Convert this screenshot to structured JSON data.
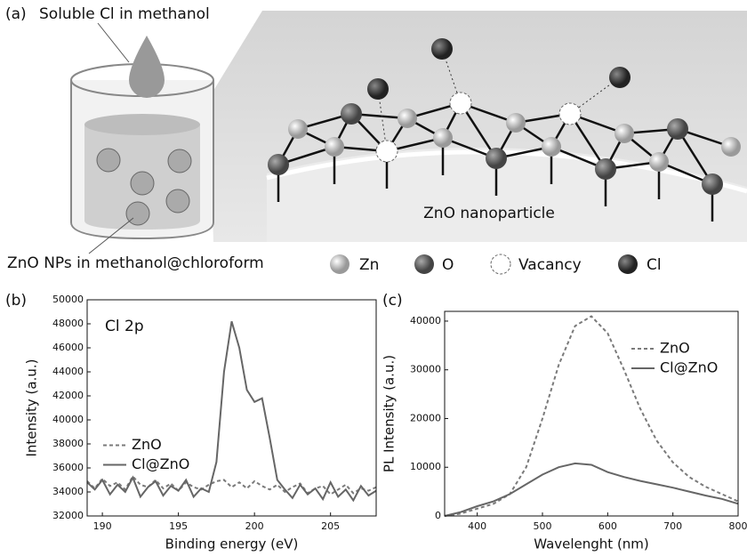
{
  "diagram": {
    "panel": "(a)",
    "source_label": "Soluble Cl in methanol",
    "beaker_label": "ZnO NPs in methanol@chloroform",
    "particle_label": "ZnO nanoparticle",
    "legend": [
      "Zn",
      "O",
      "Vacancy",
      "Cl"
    ]
  },
  "chart_data": [
    {
      "type": "line",
      "panel": "(b)",
      "annotation": "Cl 2p",
      "xlabel": "Binding energy (eV)",
      "ylabel": "Intensity (a.u.)",
      "xlim": [
        189,
        208
      ],
      "ylim": [
        32000,
        50000
      ],
      "xticks": [
        190,
        195,
        200,
        205
      ],
      "yticks": [
        32000,
        34000,
        36000,
        38000,
        40000,
        42000,
        44000,
        46000,
        48000,
        50000
      ],
      "legend": "center left",
      "x": [
        189,
        189.5,
        190,
        190.5,
        191,
        191.5,
        192,
        192.5,
        193,
        193.5,
        194,
        194.5,
        195,
        195.5,
        196,
        196.5,
        197,
        197.5,
        198,
        198.5,
        199,
        199.5,
        200,
        200.5,
        201,
        201.5,
        202,
        202.5,
        203,
        203.5,
        204,
        204.5,
        205,
        205.5,
        206,
        206.5,
        207,
        207.5,
        208
      ],
      "series": [
        {
          "name": "ZnO",
          "color": "#7a7a7a",
          "line_style": "dashed",
          "values": [
            34900,
            34300,
            35100,
            34500,
            34800,
            34200,
            35300,
            34600,
            34400,
            35000,
            34300,
            34700,
            34100,
            34800,
            34400,
            34200,
            34600,
            34900,
            35000,
            34400,
            34800,
            34300,
            34900,
            34500,
            34200,
            34600,
            34000,
            34400,
            34700,
            33900,
            34300,
            34500,
            33800,
            34200,
            34600,
            33900,
            34300,
            34100,
            34400
          ]
        },
        {
          "name": "Cl@ZnO",
          "color": "#666666",
          "line_style": "solid",
          "values": [
            34800,
            34200,
            35000,
            33800,
            34600,
            34000,
            35200,
            33600,
            34400,
            34900,
            33700,
            34500,
            34100,
            35000,
            33600,
            34300,
            34000,
            36500,
            44000,
            48200,
            46000,
            42500,
            41500,
            41800,
            38500,
            35000,
            34200,
            33500,
            34600,
            33800,
            34300,
            33400,
            34800,
            33600,
            34200,
            33300,
            34500,
            33700,
            34100
          ]
        }
      ]
    },
    {
      "type": "line",
      "panel": "(c)",
      "xlabel": "Wavelenght (nm)",
      "ylabel": "PL Intensity (a.u.)",
      "xlim": [
        350,
        800
      ],
      "ylim": [
        0,
        42000
      ],
      "xticks": [
        400,
        500,
        600,
        700,
        800
      ],
      "yticks": [
        0,
        10000,
        20000,
        30000,
        40000
      ],
      "legend": "upper right",
      "x": [
        350,
        375,
        400,
        425,
        450,
        475,
        500,
        525,
        550,
        575,
        600,
        625,
        650,
        675,
        700,
        725,
        750,
        775,
        800
      ],
      "series": [
        {
          "name": "ZnO",
          "color": "#7a7a7a",
          "line_style": "dashed",
          "values": [
            0,
            500,
            1500,
            2500,
            4500,
            10000,
            20000,
            31000,
            39000,
            41000,
            37500,
            30000,
            22000,
            15500,
            11000,
            8000,
            6000,
            4500,
            3000
          ]
        },
        {
          "name": "Cl@ZnO",
          "color": "#666666",
          "line_style": "solid",
          "values": [
            0,
            800,
            2000,
            3000,
            4500,
            6500,
            8500,
            10000,
            10800,
            10500,
            9000,
            8000,
            7200,
            6500,
            5800,
            5000,
            4200,
            3500,
            2500
          ]
        }
      ]
    }
  ]
}
